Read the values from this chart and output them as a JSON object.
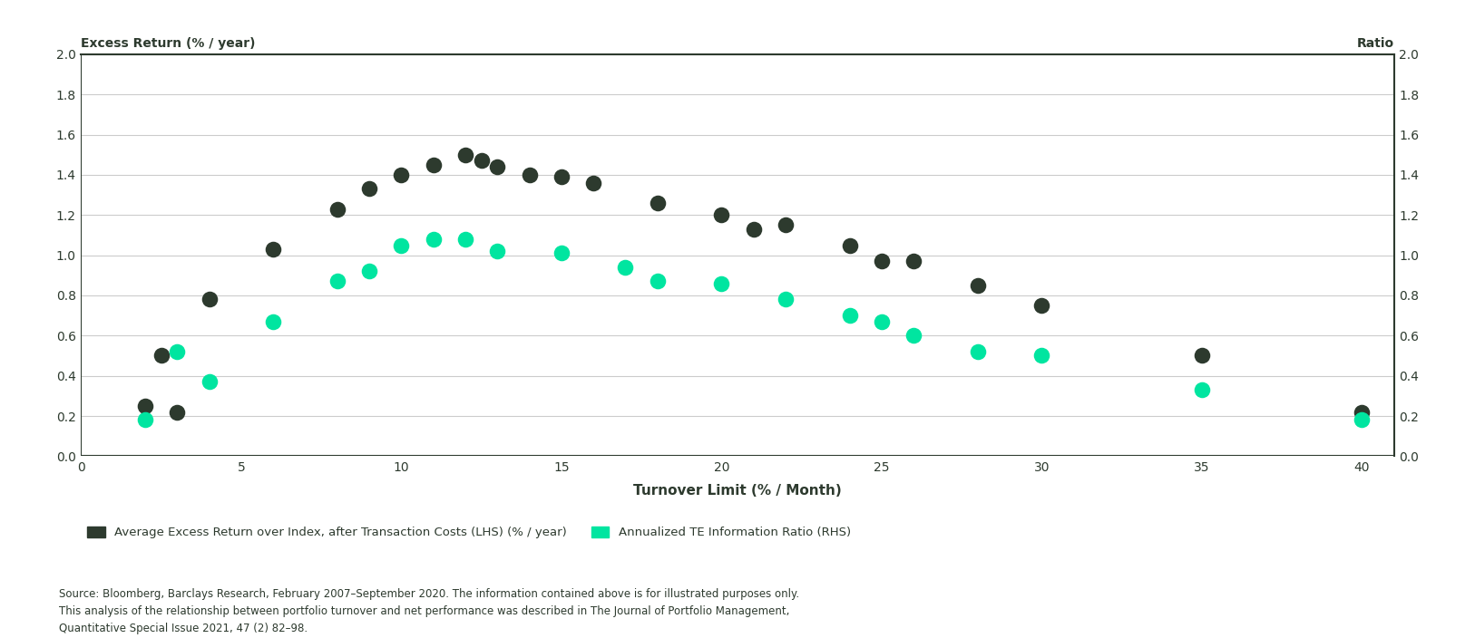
{
  "dark_x": [
    2,
    2.5,
    3,
    4,
    6,
    8,
    9,
    10,
    11,
    12,
    12.5,
    13,
    14,
    15,
    16,
    18,
    20,
    21,
    22,
    24,
    25,
    26,
    28,
    30,
    35,
    40
  ],
  "dark_y": [
    0.25,
    0.5,
    0.22,
    0.78,
    1.03,
    1.23,
    1.33,
    1.4,
    1.45,
    1.5,
    1.47,
    1.44,
    1.4,
    1.39,
    1.36,
    1.26,
    1.2,
    1.13,
    1.15,
    1.05,
    0.97,
    0.97,
    0.85,
    0.75,
    0.5,
    0.22
  ],
  "teal_x": [
    2,
    3,
    4,
    6,
    8,
    9,
    10,
    11,
    12,
    13,
    15,
    17,
    18,
    20,
    22,
    24,
    25,
    26,
    28,
    30,
    35,
    40
  ],
  "teal_y": [
    0.18,
    0.52,
    0.37,
    0.67,
    0.87,
    0.92,
    1.05,
    1.08,
    1.08,
    1.02,
    1.01,
    0.94,
    0.87,
    0.86,
    0.78,
    0.7,
    0.67,
    0.6,
    0.52,
    0.5,
    0.33,
    0.18
  ],
  "dark_color": "#2d3a2e",
  "teal_color": "#00e5a0",
  "marker_size": 160,
  "xlim": [
    0,
    41
  ],
  "ylim": [
    0.0,
    2.0
  ],
  "xticks": [
    0,
    5,
    10,
    15,
    20,
    25,
    30,
    35,
    40
  ],
  "yticks": [
    0.0,
    0.2,
    0.4,
    0.6,
    0.8,
    1.0,
    1.2,
    1.4,
    1.6,
    1.8,
    2.0
  ],
  "xlabel": "Turnover Limit (% / Month)",
  "ylabel_left": "Excess Return (% / year)",
  "ylabel_right": "Ratio",
  "legend_dark": "Average Excess Return over Index, after Transaction Costs (LHS) (% / year)",
  "legend_teal": "Annualized TE Information Ratio (RHS)",
  "source_text": "Source: Bloomberg, Barclays Research, February 2007–September 2020. The information contained above is for illustrated purposes only.\nThis analysis of the relationship between portfolio turnover and net performance was described in The Journal of Portfolio Management,\nQuantitative Special Issue 2021, 47 (2) 82–98.",
  "bg_color": "#ffffff",
  "text_color": "#2d3a2e",
  "grid_color": "#cccccc",
  "border_lw": 1.5,
  "tick_fontsize": 10,
  "label_fontsize": 10,
  "xlabel_fontsize": 11,
  "source_fontsize": 8.5,
  "legend_fontsize": 9.5
}
